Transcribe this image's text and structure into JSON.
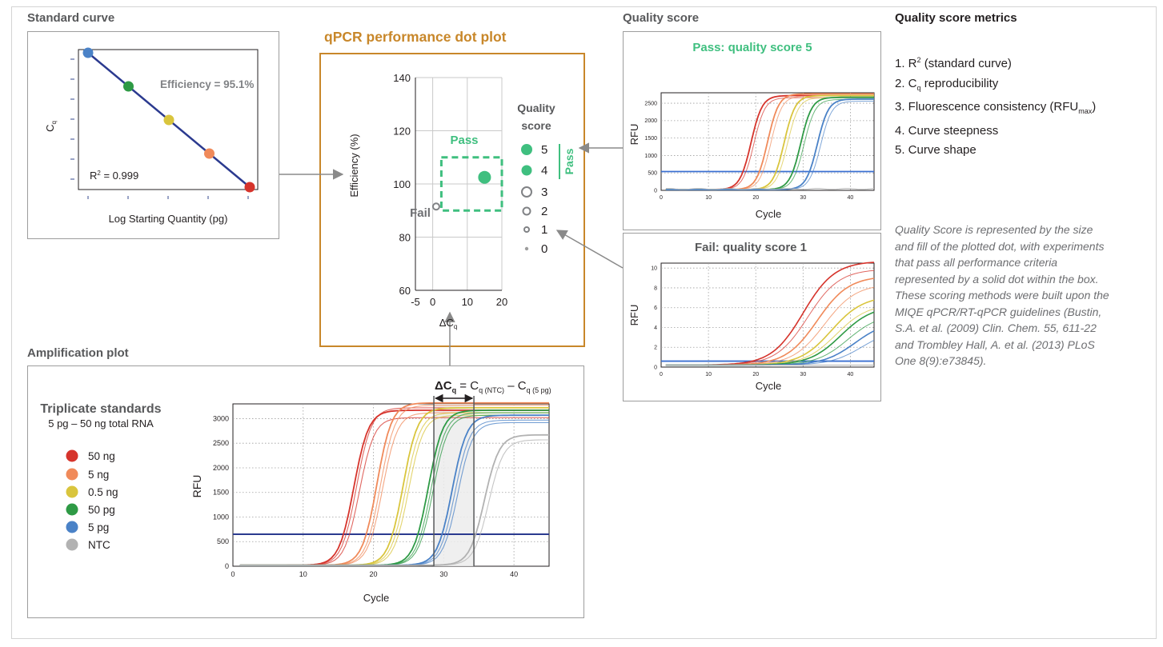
{
  "colors": {
    "c50ng": "#d6342c",
    "c5ng": "#f08a5a",
    "c05ng": "#d9c53d",
    "c50pg": "#2e9a45",
    "c5pg": "#4a82c7",
    "ntc": "#b2b2b2",
    "pass_green": "#3fbf7f",
    "accent_orange": "#c8872a",
    "threshold": "#2b3a8f"
  },
  "sections": {
    "standard_curve": "Standard curve",
    "dot_plot": "qPCR performance dot plot",
    "quality_score": "Quality score",
    "metrics_title": "Quality score metrics",
    "amplification": "Amplification plot"
  },
  "metrics": {
    "m1": "1. R",
    "m1_sup": "2",
    "m1_tail": " (standard curve)",
    "m2": "2. C",
    "m2_sub": "q",
    "m2_tail": " reproducibility",
    "m3": "3. Fluorescence consistency (RFU",
    "m3_sub": "max",
    "m3_tail": ")",
    "m4": "4. Curve steepness",
    "m5": "5. Curve shape"
  },
  "note": "Quality Score is represented by the size and fill of the plotted dot, with experiments that pass all performance criteria represented by a solid dot within the box. These scoring methods were built upon the MIQE qPCR/RT-qPCR guidelines (Bustin, S.A. et al. (2009) Clin. Chem. 55, 611-22 and Trombley Hall, A. et al. (2013) PLoS One 8(9):e73845).",
  "chart_data": [
    {
      "id": "standard-curve",
      "type": "scatter",
      "xlabel": "Log Starting Quantity (pg)",
      "ylabel": "C",
      "ylabel_sub": "q",
      "annotations": [
        "Efficiency = 95.1%",
        "R",
        "2",
        " = 0.999"
      ],
      "points": [
        {
          "x": 0,
          "y": 100,
          "color": "#4a82c7"
        },
        {
          "x": 1,
          "y": 77,
          "color": "#2e9a45"
        },
        {
          "x": 2,
          "y": 54,
          "color": "#d9c53d"
        },
        {
          "x": 3,
          "y": 31,
          "color": "#f08a5a"
        },
        {
          "x": 4,
          "y": 8,
          "color": "#d6342c"
        }
      ]
    },
    {
      "id": "dot-plot",
      "type": "scatter",
      "xlabel": "ΔC",
      "xlabel_sub": "q",
      "ylabel": "Efficiency (%)",
      "xlim": [
        -5,
        20
      ],
      "ylim": [
        60,
        140
      ],
      "x_ticks": [
        "-5",
        "0",
        "10",
        "20"
      ],
      "y_ticks": [
        "140",
        "120",
        "100",
        "80",
        "60"
      ],
      "x_tick_values": [
        -5,
        0,
        10,
        20
      ],
      "y_tick_values": [
        140,
        120,
        100,
        80,
        60
      ],
      "pass_box": {
        "x": [
          2.5,
          20
        ],
        "y": [
          90,
          110
        ]
      },
      "labels": {
        "pass": "Pass",
        "fail": "Fail"
      },
      "points": [
        {
          "x": 15,
          "y": 102.5,
          "score": 5,
          "label": "pass"
        },
        {
          "x": 1,
          "y": 91.5,
          "score": 1,
          "label": "fail"
        }
      ],
      "legend": {
        "title_line1": "Quality",
        "title_line2": "score",
        "scores": [
          "5",
          "4",
          "3",
          "2",
          "1",
          "0"
        ],
        "pass_label": "Pass"
      }
    },
    {
      "id": "pass-amp",
      "type": "line",
      "title": "Pass: quality score 5",
      "xlabel": "Cycle",
      "ylabel": "RFU",
      "xlim": [
        0,
        45
      ],
      "ylim": [
        0,
        2800
      ],
      "x_ticks": [
        "0",
        "10",
        "20",
        "30",
        "40"
      ],
      "y_ticks": [
        "0",
        "500",
        "1000",
        "1500",
        "2000",
        "2500"
      ],
      "x_tick_values": [
        0,
        10,
        20,
        30,
        40
      ],
      "y_tick_values": [
        0,
        500,
        1000,
        1500,
        2000,
        2500
      ],
      "threshold": 540,
      "series": [
        {
          "color": "#d6342c",
          "midpoints": [
            19,
            19.6
          ],
          "plateau": 2700
        },
        {
          "color": "#f08a5a",
          "midpoints": [
            22.5,
            23.2
          ],
          "plateau": 2750
        },
        {
          "color": "#d9c53d",
          "midpoints": [
            26,
            26.7
          ],
          "plateau": 2700
        },
        {
          "color": "#2e9a45",
          "midpoints": [
            29.5,
            30.2
          ],
          "plateau": 2650
        },
        {
          "color": "#4a82c7",
          "midpoints": [
            33,
            33.7
          ],
          "plateau": 2600
        },
        {
          "color": "#b2b2b2",
          "midpoints": [],
          "plateau": 40
        }
      ]
    },
    {
      "id": "fail-amp",
      "type": "line",
      "title": "Fail: quality score 1",
      "xlabel": "Cycle",
      "ylabel": "RFU",
      "xlim": [
        0,
        45
      ],
      "ylim": [
        0,
        10.5
      ],
      "x_ticks": [
        "0",
        "10",
        "20",
        "30",
        "40"
      ],
      "y_ticks": [
        "0",
        "2",
        "4",
        "6",
        "8",
        "10"
      ],
      "x_tick_values": [
        0,
        10,
        20,
        30,
        40
      ],
      "y_tick_values": [
        0,
        2,
        4,
        6,
        8,
        10
      ],
      "threshold": 0.6,
      "series": [
        {
          "color": "#d6342c",
          "midpoints": [
            30,
            31
          ],
          "plateau": 10.5
        },
        {
          "color": "#f08a5a",
          "midpoints": [
            33,
            34.5
          ],
          "plateau": 9
        },
        {
          "color": "#d9c53d",
          "midpoints": [
            36,
            37
          ],
          "plateau": 7
        },
        {
          "color": "#2e9a45",
          "midpoints": [
            38,
            39.5
          ],
          "plateau": 6
        },
        {
          "color": "#4a82c7",
          "midpoints": [
            41,
            42.5
          ],
          "plateau": 4.5
        },
        {
          "color": "#b2b2b2",
          "midpoints": [],
          "plateau": 0.2
        }
      ]
    },
    {
      "id": "amplification",
      "type": "line",
      "xlabel": "Cycle",
      "ylabel": "RFU",
      "xlim": [
        0,
        45
      ],
      "ylim": [
        0,
        3300
      ],
      "x_ticks": [
        "0",
        "10",
        "20",
        "30",
        "40"
      ],
      "y_ticks": [
        "0",
        "500",
        "1000",
        "1500",
        "2000",
        "2500",
        "3000"
      ],
      "x_tick_values": [
        0,
        10,
        20,
        30,
        40
      ],
      "y_tick_values": [
        0,
        500,
        1000,
        1500,
        2000,
        2500,
        3000
      ],
      "threshold": 650,
      "delta_cq": {
        "from": 28.6,
        "to": 34.3
      },
      "formula": {
        "delta": "ΔC",
        "delta_sub": "q",
        "eq": " = C",
        "cq1_sub": "q (NTC)",
        "minus": " – C",
        "cq2_sub": "q (5 pg)"
      },
      "legend": {
        "title": "Triplicate standards",
        "subtitle": "5 pg – 50 ng total RNA",
        "entries": [
          "50 ng",
          "5 ng",
          "0.5 ng",
          "50 pg",
          "5 pg",
          "NTC"
        ]
      },
      "series": [
        {
          "name": "50 ng",
          "color": "#d6342c",
          "midpoints": [
            17.2,
            17.6,
            18
          ],
          "plateaus": [
            3150,
            3200,
            3000
          ]
        },
        {
          "name": "5 ng",
          "color": "#f08a5a",
          "midpoints": [
            20.5,
            21,
            21.3
          ],
          "plateaus": [
            3300,
            3250,
            3100
          ]
        },
        {
          "name": "0.5 ng",
          "color": "#d9c53d",
          "midpoints": [
            24.2,
            24.6,
            25
          ],
          "plateaus": [
            3200,
            3100,
            3050
          ]
        },
        {
          "name": "50 pg",
          "color": "#2e9a45",
          "midpoints": [
            27.8,
            28.2,
            28.5
          ],
          "plateaus": [
            3150,
            3100,
            3050
          ]
        },
        {
          "name": "5 pg",
          "color": "#4a82c7",
          "midpoints": [
            31.2,
            31.6,
            32
          ],
          "plateaus": [
            3050,
            2950,
            2900
          ]
        },
        {
          "name": "NTC",
          "color": "#b2b2b2",
          "midpoints": [
            35.8,
            36.4
          ],
          "plateaus": [
            2650,
            2550
          ]
        }
      ]
    }
  ]
}
